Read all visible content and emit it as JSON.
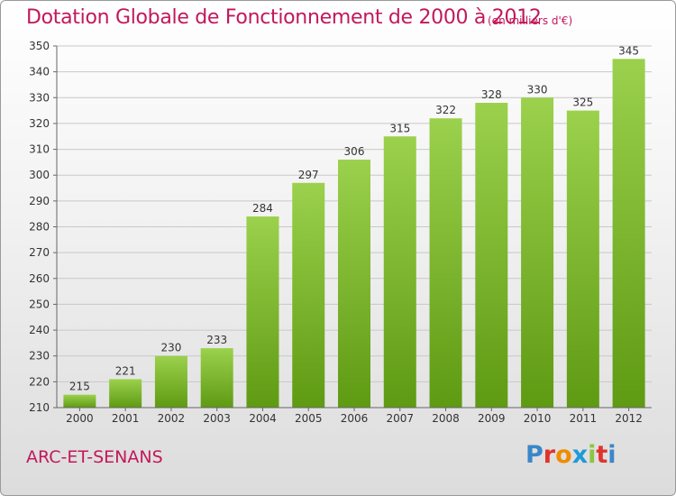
{
  "header": {
    "title": "Dotation Globale de Fonctionnement de 2000 à 2012",
    "subtitle": "(en milliers d'€)"
  },
  "footer": {
    "town": "ARC-ET-SENANS",
    "logo": [
      "P",
      "r",
      "o",
      "x",
      "i",
      "t",
      "i"
    ]
  },
  "colors": {
    "title": "#c2185b",
    "bar_top": "#9bd14c",
    "bar_bottom": "#5f9a13",
    "logo": [
      "#3b86c9",
      "#e0342b",
      "#f08c00",
      "#1f9ad6",
      "#8cc63f",
      "#e0342b",
      "#3b86c9"
    ]
  },
  "chart_data": {
    "type": "bar",
    "categories": [
      "2000",
      "2001",
      "2002",
      "2003",
      "2004",
      "2005",
      "2006",
      "2007",
      "2008",
      "2009",
      "2010",
      "2011",
      "2012"
    ],
    "values": [
      215,
      221,
      230,
      233,
      284,
      297,
      306,
      315,
      322,
      328,
      330,
      325,
      345
    ],
    "ylim": [
      210,
      350
    ],
    "yticks": [
      210,
      220,
      230,
      240,
      250,
      260,
      270,
      280,
      290,
      300,
      310,
      320,
      330,
      340,
      350
    ],
    "grid": true,
    "legend": "none"
  }
}
